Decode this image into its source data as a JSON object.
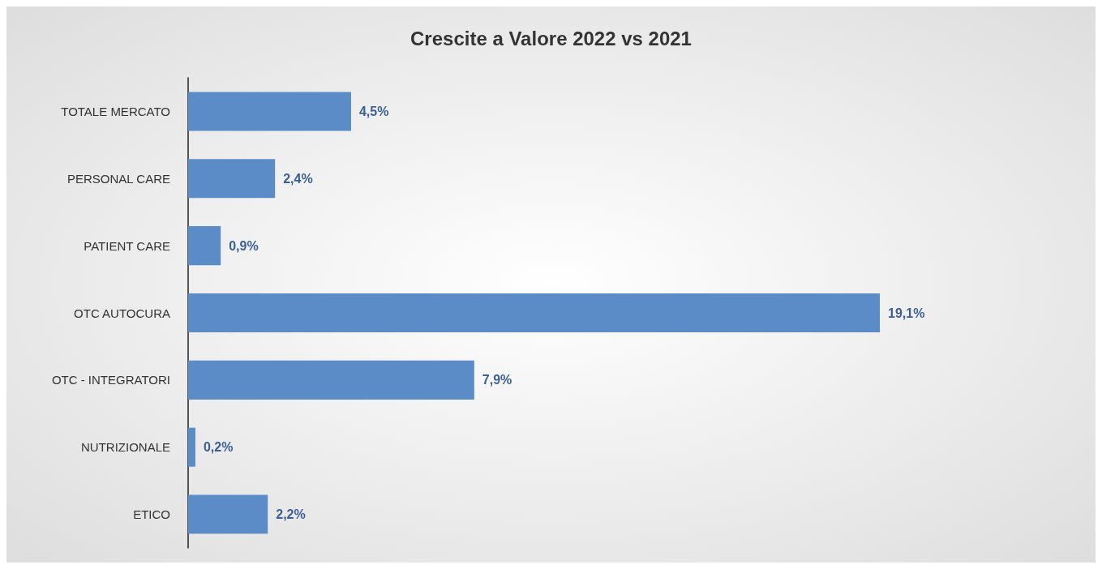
{
  "chart_data": {
    "type": "bar",
    "title": "Crescite a Valore 2022 vs 2021",
    "orientation": "horizontal",
    "categories": [
      "TOTALE MERCATO",
      "PERSONAL CARE",
      "PATIENT CARE",
      "OTC AUTOCURA",
      "OTC - INTEGRATORI",
      "NUTRIZIONALE",
      "ETICO"
    ],
    "values": [
      4.5,
      2.4,
      0.9,
      19.1,
      7.9,
      0.2,
      2.2
    ],
    "value_labels": [
      "4,5%",
      "2,4%",
      "0,9%",
      "19,1%",
      "7,9%",
      "0,2%",
      "2,2%"
    ],
    "color": "#5b8cc8"
  }
}
